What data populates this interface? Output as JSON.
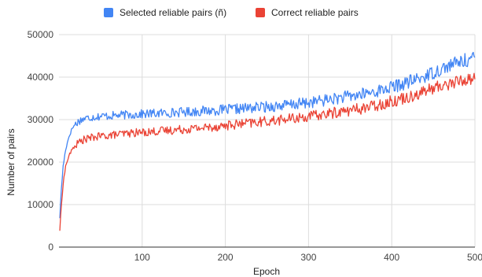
{
  "chart_data": {
    "type": "line",
    "title": "",
    "xlabel": "Epoch",
    "ylabel": "Number of pairs",
    "xlim": [
      0,
      500
    ],
    "ylim": [
      0,
      50000
    ],
    "x_ticks": [
      100,
      200,
      300,
      400,
      500
    ],
    "y_ticks": [
      0,
      10000,
      20000,
      30000,
      40000,
      50000
    ],
    "grid": true,
    "legend_position": "top",
    "series": [
      {
        "name": "Selected reliable pairs (ñ)",
        "color": "#4285F4",
        "x": [
          1,
          3,
          5,
          8,
          12,
          16,
          20,
          25,
          30,
          40,
          50,
          60,
          70,
          80,
          90,
          100,
          120,
          140,
          160,
          180,
          200,
          220,
          240,
          260,
          280,
          300,
          320,
          340,
          360,
          380,
          400,
          420,
          440,
          460,
          480,
          500
        ],
        "y": [
          7000,
          14000,
          19000,
          23000,
          26000,
          28000,
          29000,
          29800,
          30200,
          30600,
          30800,
          30900,
          31000,
          31100,
          31200,
          31300,
          31500,
          31700,
          31900,
          32100,
          32300,
          32600,
          32900,
          33200,
          33500,
          34000,
          34600,
          35200,
          35800,
          36600,
          37600,
          38800,
          40200,
          42000,
          43500,
          44500
        ],
        "noise": 1300
      },
      {
        "name": "Correct reliable pairs",
        "color": "#EA4335",
        "x": [
          1,
          3,
          5,
          8,
          12,
          16,
          20,
          25,
          30,
          40,
          50,
          60,
          70,
          80,
          90,
          100,
          120,
          140,
          160,
          180,
          200,
          220,
          240,
          260,
          280,
          300,
          320,
          340,
          360,
          380,
          400,
          420,
          440,
          460,
          480,
          500
        ],
        "y": [
          4000,
          10000,
          15000,
          19000,
          21500,
          23000,
          24000,
          24800,
          25300,
          25800,
          26100,
          26300,
          26500,
          26700,
          26900,
          27000,
          27300,
          27600,
          27900,
          28200,
          28600,
          29000,
          29400,
          29800,
          30200,
          30700,
          31300,
          31900,
          32500,
          33300,
          34300,
          35400,
          36700,
          38000,
          39000,
          39800
        ],
        "noise": 1200
      }
    ]
  }
}
